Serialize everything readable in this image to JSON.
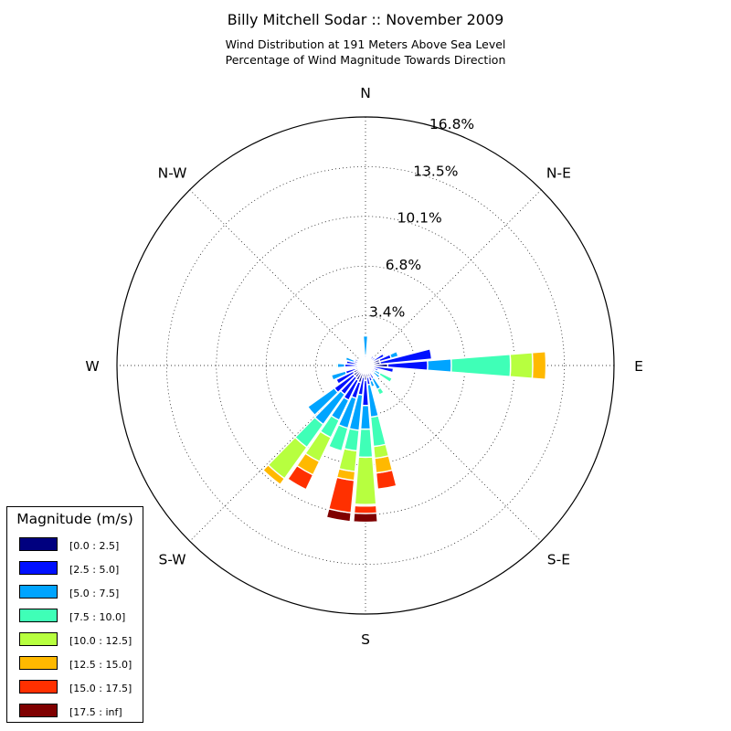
{
  "title": "Billy Mitchell Sodar :: November 2009",
  "subtitle_line1": "Wind Distribution at 191 Meters Above Sea Level",
  "subtitle_line2": "Percentage of Wind Magnitude Towards Direction",
  "legend": {
    "title": "Magnitude (m/s)",
    "items": [
      {
        "label": "[0.0 : 2.5]",
        "color": "#00007f"
      },
      {
        "label": "[2.5 : 5.0]",
        "color": "#0010ff"
      },
      {
        "label": "[5.0 : 7.5]",
        "color": "#00a4ff"
      },
      {
        "label": "[7.5 : 10.0]",
        "color": "#3fffb7"
      },
      {
        "label": "[10.0 : 12.5]",
        "color": "#b7ff3f"
      },
      {
        "label": "[12.5 : 15.0]",
        "color": "#ffb900"
      },
      {
        "label": "[15.0 : 17.5]",
        "color": "#ff3000"
      },
      {
        "label": "[17.5 : inf]",
        "color": "#7f0000"
      }
    ]
  },
  "chart_data": {
    "type": "windrose",
    "direction_labels": [
      "E",
      "N-E",
      "N",
      "N-W",
      "W",
      "S-W",
      "S",
      "S-E"
    ],
    "radial_ticks": [
      "3.4%",
      "6.8%",
      "10.1%",
      "13.5%",
      "16.8%"
    ],
    "radial_max": 16.8,
    "sector_count": 36,
    "bin_labels": [
      "[0.0 : 2.5]",
      "[2.5 : 5.0]",
      "[5.0 : 7.5]",
      "[7.5 : 10.0]",
      "[10.0 : 12.5]",
      "[12.5 : 15.0]",
      "[15.0 : 17.5]",
      "[17.5 : inf]"
    ],
    "sectors": [
      {
        "direction_deg": 0,
        "cumulative": [
          1.5,
          4.2,
          5.8,
          9.8,
          11.3,
          12.2
        ]
      },
      {
        "direction_deg": 10,
        "cumulative": [
          1.0,
          4.5
        ]
      },
      {
        "direction_deg": 20,
        "cumulative": [
          1.0,
          1.8,
          2.3
        ]
      },
      {
        "direction_deg": 30,
        "cumulative": [
          0.6,
          1.4,
          1.5
        ]
      },
      {
        "direction_deg": 40,
        "cumulative": [
          0.5,
          0.8
        ]
      },
      {
        "direction_deg": 50,
        "cumulative": [
          0.4,
          0.8
        ]
      },
      {
        "direction_deg": 60,
        "cumulative": [
          0.3,
          0.6
        ]
      },
      {
        "direction_deg": 70,
        "cumulative": [
          0.3,
          0.6
        ]
      },
      {
        "direction_deg": 80,
        "cumulative": [
          0.3,
          0.6
        ]
      },
      {
        "direction_deg": 90,
        "cumulative": [
          0.3,
          0.7,
          2.0
        ]
      },
      {
        "direction_deg": 100,
        "cumulative": [
          0.3,
          0.5
        ]
      },
      {
        "direction_deg": 110,
        "cumulative": [
          0.3,
          0.6
        ]
      },
      {
        "direction_deg": 120,
        "cumulative": [
          0.3,
          0.6
        ]
      },
      {
        "direction_deg": 130,
        "cumulative": [
          0.3,
          0.6
        ]
      },
      {
        "direction_deg": 140,
        "cumulative": [
          0.3,
          0.6
        ]
      },
      {
        "direction_deg": 150,
        "cumulative": [
          0.3,
          0.8
        ]
      },
      {
        "direction_deg": 160,
        "cumulative": [
          0.3,
          0.8,
          1.4
        ]
      },
      {
        "direction_deg": 170,
        "cumulative": [
          0.3,
          1.3
        ]
      },
      {
        "direction_deg": 180,
        "cumulative": [
          0.5,
          1.4,
          1.9,
          2.0
        ]
      },
      {
        "direction_deg": 190,
        "cumulative": [
          0.5,
          0.7,
          0.8
        ]
      },
      {
        "direction_deg": 200,
        "cumulative": [
          0.7,
          1.4,
          2.4
        ]
      },
      {
        "direction_deg": 210,
        "cumulative": [
          0.9,
          2.2
        ]
      },
      {
        "direction_deg": 220,
        "cumulative": [
          1.0,
          2.6,
          4.8
        ]
      },
      {
        "direction_deg": 230,
        "cumulative": [
          1.0,
          2.4,
          4.9,
          6.8,
          9.4,
          9.9
        ]
      },
      {
        "direction_deg": 240,
        "cumulative": [
          1.1,
          2.6,
          4.1,
          5.4,
          7.2,
          8.2,
          9.3
        ]
      },
      {
        "direction_deg": 250,
        "cumulative": [
          1.2,
          2.3,
          4.4,
          6.0
        ]
      },
      {
        "direction_deg": 260,
        "cumulative": [
          0.8,
          2.0,
          4.4,
          5.8,
          7.2,
          7.8,
          10.0,
          10.6
        ]
      },
      {
        "direction_deg": 270,
        "cumulative": [
          1.0,
          2.7,
          4.3,
          6.2,
          9.4,
          9.5,
          10.0,
          10.6
        ]
      },
      {
        "direction_deg": 280,
        "cumulative": [
          0.8,
          1.3,
          3.5,
          5.5,
          6.3,
          7.3,
          8.4
        ]
      },
      {
        "direction_deg": 290,
        "cumulative": [
          0.8,
          1.1,
          1.5
        ]
      },
      {
        "direction_deg": 300,
        "cumulative": [
          0.5,
          1.0,
          1.8,
          2.2
        ]
      },
      {
        "direction_deg": 310,
        "cumulative": [
          0.3,
          0.6
        ]
      },
      {
        "direction_deg": 320,
        "cumulative": [
          0.3,
          0.7,
          1.2
        ]
      },
      {
        "direction_deg": 330,
        "cumulative": [
          0.3,
          0.7,
          1.1,
          2.0
        ]
      },
      {
        "direction_deg": 340,
        "cumulative": [
          0.3,
          0.9
        ]
      },
      {
        "direction_deg": 350,
        "cumulative": [
          0.5,
          1.9
        ]
      }
    ]
  }
}
